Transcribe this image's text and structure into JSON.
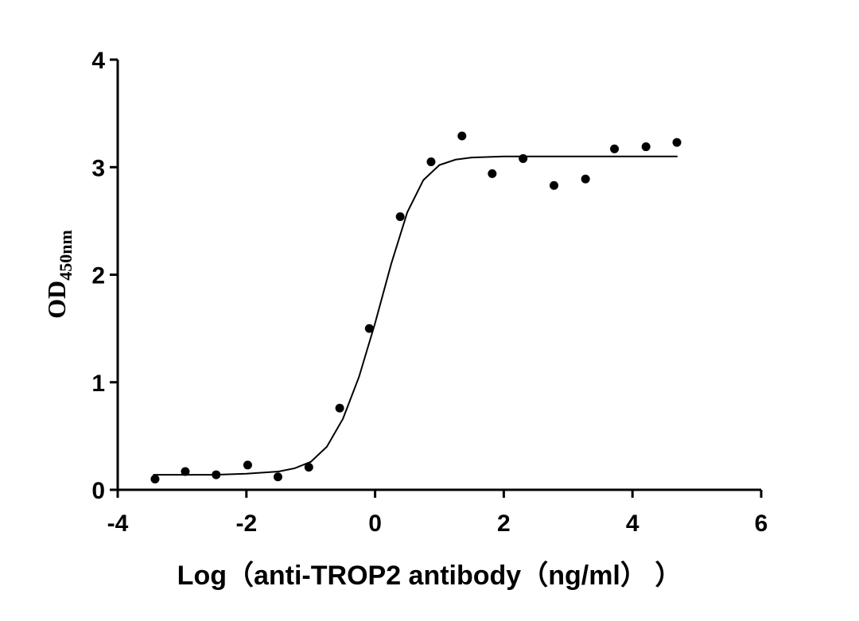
{
  "chart_data": {
    "type": "scatter",
    "x_label": "Log（anti-TROP2 antibody（ng/ml）  ）",
    "y_label": "OD",
    "y_label_sub": "450nm",
    "xlim": [
      -4,
      6
    ],
    "xticks": [
      -4,
      -2,
      0,
      2,
      4,
      6
    ],
    "ylim": [
      0,
      4
    ],
    "yticks": [
      0,
      1,
      2,
      3,
      4
    ],
    "series": [
      {
        "kind": "points",
        "color": "#000000",
        "x": [
          -3.42,
          -2.95,
          -2.47,
          -1.98,
          -1.51,
          -1.03,
          -0.55,
          -0.09,
          0.39,
          0.87,
          1.35,
          1.82,
          2.3,
          2.78,
          3.27,
          3.72,
          4.21,
          4.69
        ],
        "values": [
          0.1,
          0.17,
          0.14,
          0.23,
          0.12,
          0.21,
          0.76,
          1.5,
          2.54,
          3.05,
          3.29,
          2.94,
          3.08,
          2.83,
          2.89,
          3.17,
          3.19,
          3.23
        ]
      },
      {
        "kind": "curve",
        "color": "#000000",
        "x": [
          -3.45,
          -3,
          -2.5,
          -2,
          -1.5,
          -1.25,
          -1,
          -0.75,
          -0.5,
          -0.25,
          0,
          0.25,
          0.5,
          0.75,
          1,
          1.25,
          1.5,
          2,
          3,
          4,
          4.7
        ],
        "values": [
          0.14,
          0.14,
          0.14,
          0.15,
          0.17,
          0.2,
          0.26,
          0.4,
          0.66,
          1.05,
          1.55,
          2.1,
          2.58,
          2.88,
          3.02,
          3.07,
          3.09,
          3.1,
          3.1,
          3.1,
          3.1
        ]
      }
    ]
  }
}
